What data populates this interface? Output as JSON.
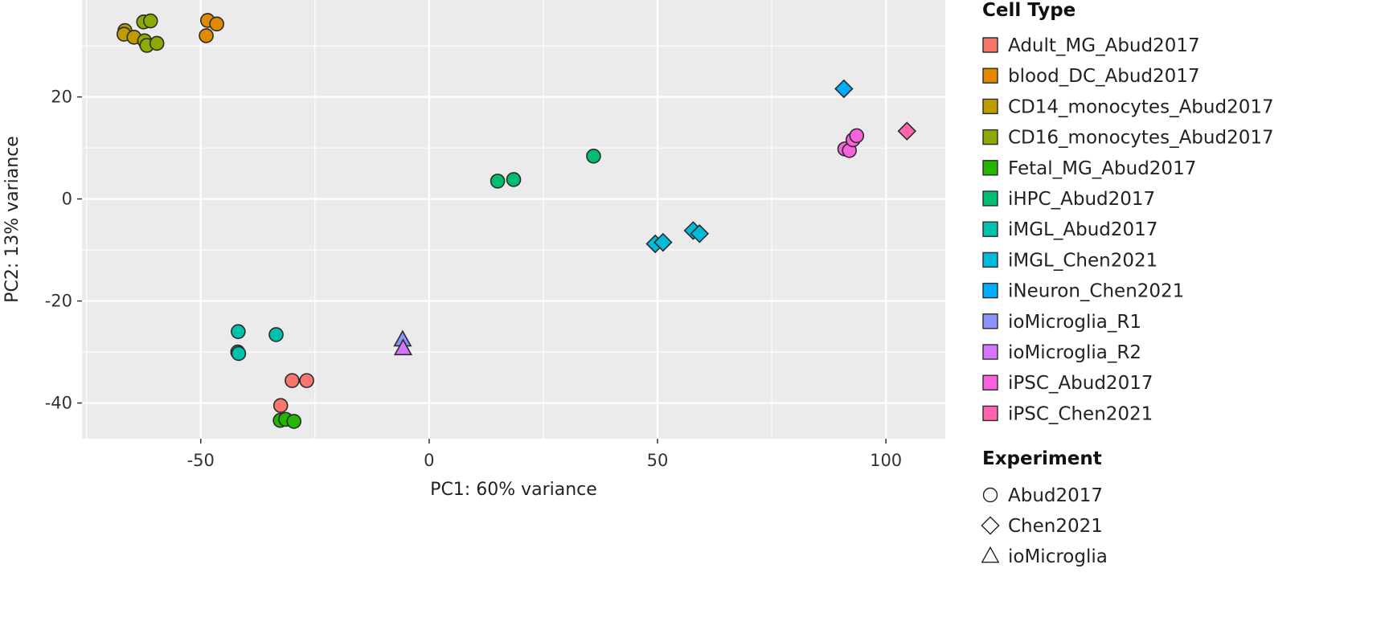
{
  "chart_data": {
    "type": "scatter",
    "title": "",
    "xlabel": "PC1: 60% variance",
    "ylabel": "PC2: 13% variance",
    "xlim": [
      -76,
      113
    ],
    "ylim": [
      -47,
      39
    ],
    "x_ticks": [
      -50,
      0,
      50,
      100
    ],
    "y_ticks": [
      -40,
      -20,
      0,
      20
    ],
    "x_tick_labels": [
      "-50",
      "0",
      "50",
      "100"
    ],
    "y_tick_labels": [
      "-40",
      "-20",
      "0",
      "20"
    ],
    "grid": true,
    "background": "#ebebeb",
    "legend_position": "right",
    "legends": {
      "color": {
        "title": "Cell Type",
        "entries": [
          {
            "name": "Adult_MG_Abud2017",
            "color": "#f8766d"
          },
          {
            "name": "blood_DC_Abud2017",
            "color": "#e18a00"
          },
          {
            "name": "CD14_monocytes_Abud2017",
            "color": "#be9c00"
          },
          {
            "name": "CD16_monocytes_Abud2017",
            "color": "#8cab00"
          },
          {
            "name": "Fetal_MG_Abud2017",
            "color": "#24b700"
          },
          {
            "name": "iHPC_Abud2017",
            "color": "#00be70"
          },
          {
            "name": "iMGL_Abud2017",
            "color": "#00c1ab"
          },
          {
            "name": "iMGL_Chen2021",
            "color": "#00bbda"
          },
          {
            "name": "iNeuron_Chen2021",
            "color": "#00acfc"
          },
          {
            "name": "ioMicroglia_R1",
            "color": "#8b93ff"
          },
          {
            "name": "ioMicroglia_R2",
            "color": "#d575fe"
          },
          {
            "name": "iPSC_Abud2017",
            "color": "#f962dd"
          },
          {
            "name": "iPSC_Chen2021",
            "color": "#ff65ac"
          }
        ]
      },
      "shape": {
        "title": "Experiment",
        "entries": [
          {
            "name": "Abud2017",
            "shape": "circle"
          },
          {
            "name": "Chen2021",
            "shape": "diamond"
          },
          {
            "name": "ioMicroglia",
            "shape": "triangle"
          }
        ]
      }
    },
    "series": [
      {
        "name": "Adult_MG_Abud2017",
        "shape": "circle",
        "color": "#f8766d",
        "points": [
          [
            -30,
            -35.6
          ],
          [
            -26.8,
            -35.6
          ],
          [
            -32.5,
            -40.5
          ]
        ]
      },
      {
        "name": "blood_DC_Abud2017",
        "shape": "circle",
        "color": "#e18a00",
        "points": [
          [
            -48.5,
            35
          ],
          [
            -46.5,
            34.3
          ],
          [
            -48.8,
            32
          ]
        ]
      },
      {
        "name": "CD14_monocytes_Abud2017",
        "shape": "circle",
        "color": "#be9c00",
        "points": [
          [
            -66.6,
            33
          ],
          [
            -66.8,
            32.3
          ],
          [
            -64.6,
            31.7
          ]
        ]
      },
      {
        "name": "CD16_monocytes_Abud2017",
        "shape": "circle",
        "color": "#8cab00",
        "points": [
          [
            -62.5,
            34.7
          ],
          [
            -61,
            34.9
          ],
          [
            -62.3,
            31
          ],
          [
            -61.8,
            30.1
          ],
          [
            -59.6,
            30.5
          ]
        ]
      },
      {
        "name": "Fetal_MG_Abud2017",
        "shape": "circle",
        "color": "#24b700",
        "points": [
          [
            -32.6,
            -43.4
          ],
          [
            -31.4,
            -43.2
          ],
          [
            -29.6,
            -43.6
          ]
        ]
      },
      {
        "name": "iHPC_Abud2017",
        "shape": "circle",
        "color": "#00be70",
        "points": [
          [
            15,
            3.5
          ],
          [
            18.5,
            3.8
          ],
          [
            36,
            8.4
          ]
        ]
      },
      {
        "name": "iMGL_Abud2017",
        "shape": "circle",
        "color": "#00c1ab",
        "points": [
          [
            -41.8,
            -26
          ],
          [
            -33.5,
            -26.6
          ],
          [
            -41.9,
            -30
          ],
          [
            -41.7,
            -30.3
          ]
        ]
      },
      {
        "name": "iMGL_Chen2021",
        "shape": "diamond",
        "color": "#00bbda",
        "points": [
          [
            49.5,
            -8.8
          ],
          [
            51.2,
            -8.5
          ],
          [
            57.8,
            -6.2
          ],
          [
            59.2,
            -6.8
          ]
        ]
      },
      {
        "name": "iNeuron_Chen2021",
        "shape": "diamond",
        "color": "#00acfc",
        "points": [
          [
            90.8,
            21.6
          ]
        ]
      },
      {
        "name": "ioMicroglia_R1",
        "shape": "triangle",
        "color": "#8b93ff",
        "points": [
          [
            -5.8,
            -27.6
          ]
        ]
      },
      {
        "name": "ioMicroglia_R2",
        "shape": "triangle",
        "color": "#d575fe",
        "points": [
          [
            -5.7,
            -29.3
          ]
        ]
      },
      {
        "name": "iPSC_Abud2017",
        "shape": "circle",
        "color": "#f962dd",
        "points": [
          [
            91,
            9.8
          ],
          [
            92,
            9.5
          ],
          [
            92.8,
            11.6
          ],
          [
            93.6,
            12.4
          ]
        ]
      },
      {
        "name": "iPSC_Chen2021",
        "shape": "diamond",
        "color": "#ff65ac",
        "points": [
          [
            104.6,
            13.3
          ]
        ]
      }
    ]
  }
}
